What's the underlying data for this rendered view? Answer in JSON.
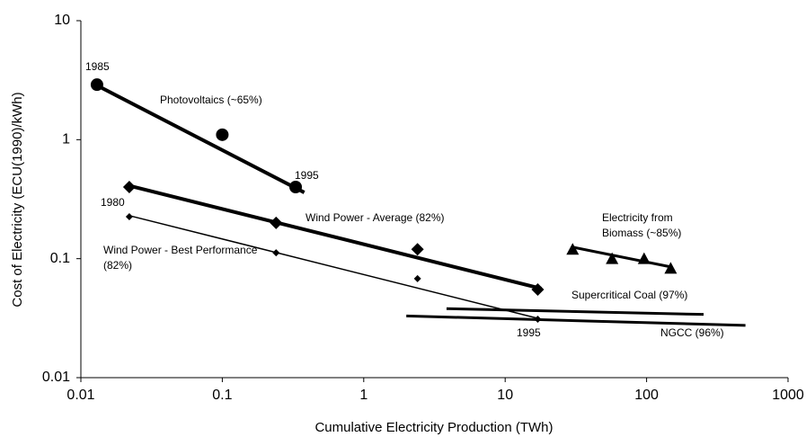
{
  "chart_data": {
    "type": "scatter",
    "x_label": "Cumulative Electricity Production (TWh)",
    "y_label": "Cost of Electricity (ECU(1990)/kWh)",
    "log_x": true,
    "log_y": true,
    "xlim": [
      0.01,
      1000
    ],
    "xticks": [
      0.01,
      0.1,
      1,
      10,
      100,
      1000
    ],
    "ylim": [
      0.01,
      10
    ],
    "yticks": [
      0.01,
      0.1,
      1,
      10
    ],
    "grid": false,
    "series": [
      {
        "label": [
          "Photovoltaics (~65%)"
        ],
        "marker": "circle",
        "line_width": 4,
        "color": "#000000",
        "x": [
          0.013,
          0.1,
          0.33
        ],
        "values": [
          2.9,
          1.1,
          0.4
        ],
        "fit_x": [
          0.012,
          0.38
        ],
        "fit_y": [
          3.0,
          0.36
        ]
      },
      {
        "label": [
          "Wind Power - Average (82%)"
        ],
        "marker": "diamond",
        "line_width": 4,
        "color": "#000000",
        "x": [
          0.022,
          0.24,
          2.4,
          17
        ],
        "values": [
          0.4,
          0.2,
          0.12,
          0.055
        ],
        "fit_x": [
          0.022,
          18
        ],
        "fit_y": [
          0.41,
          0.056
        ]
      },
      {
        "label": [
          "Wind Power - Best Performance",
          "(82%)"
        ],
        "marker": "small-diamond",
        "line_width": 1.5,
        "color": "#000000",
        "x": [
          0.022,
          0.24,
          2.4,
          17
        ],
        "values": [
          0.225,
          0.112,
          0.068,
          0.031
        ],
        "fit_x": [
          0.022,
          18
        ],
        "fit_y": [
          0.23,
          0.031
        ]
      },
      {
        "label": [
          "Electricity from",
          "Biomass (~85%)"
        ],
        "marker": "triangle",
        "line_width": 3,
        "color": "#000000",
        "x": [
          30,
          57,
          96,
          148
        ],
        "values": [
          0.12,
          0.1,
          0.1,
          0.083
        ],
        "fit_x": [
          30,
          150
        ],
        "fit_y": [
          0.125,
          0.085
        ]
      },
      {
        "label": [
          "Supercritical Coal (97%)"
        ],
        "marker": "none",
        "line_width": 3,
        "color": "#000000",
        "x": [
          3.85,
          253
        ],
        "values": [
          0.038,
          0.034
        ]
      },
      {
        "label": [
          "NGCC (96%)"
        ],
        "marker": "none",
        "line_width": 3,
        "color": "#000000",
        "x": [
          2,
          500
        ],
        "values": [
          0.033,
          0.0275
        ]
      }
    ],
    "annotations": [
      "1985",
      "1995",
      "1980",
      "1995"
    ]
  }
}
